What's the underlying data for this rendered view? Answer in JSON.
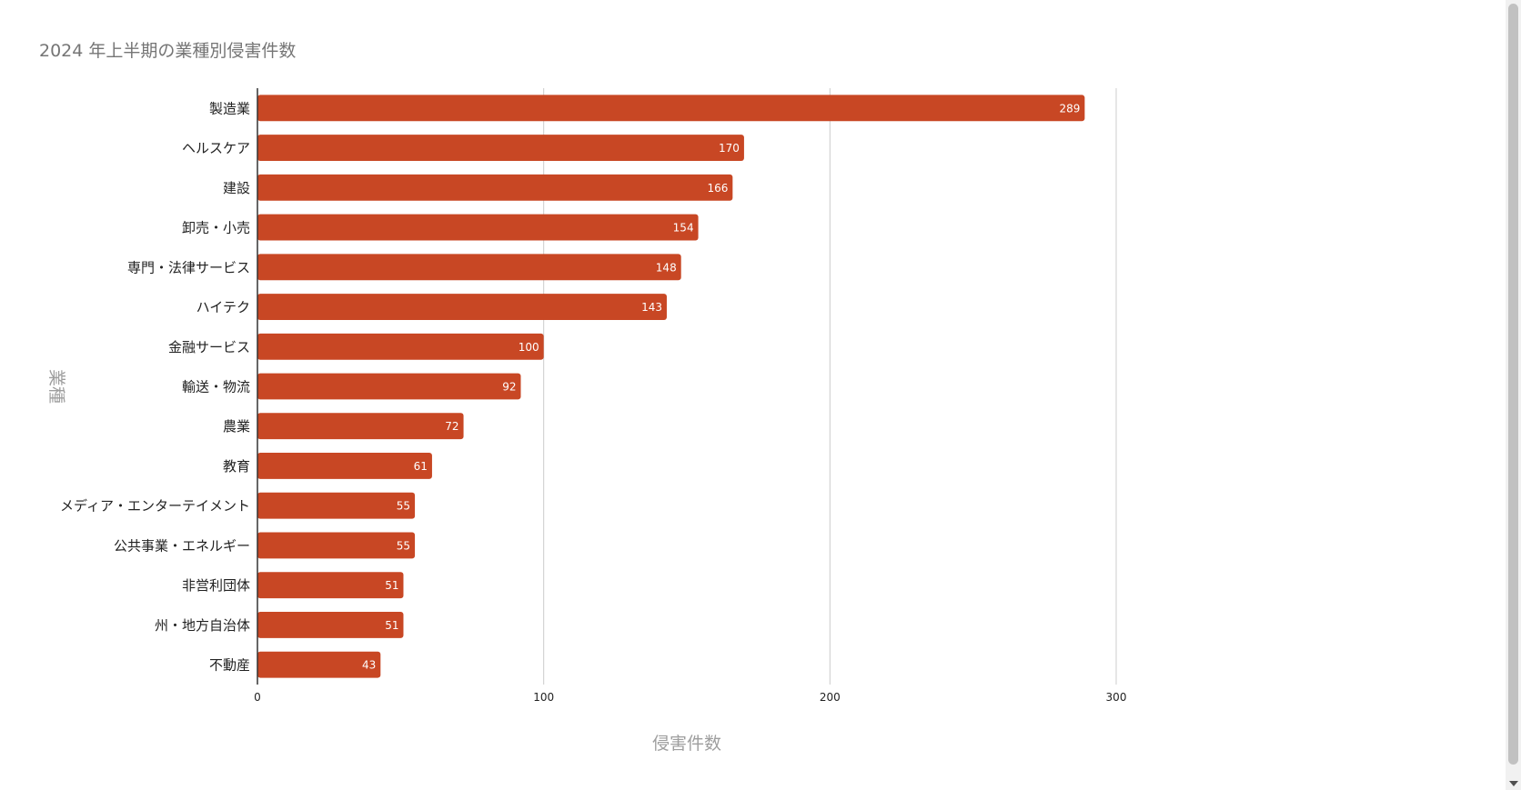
{
  "chart_data": {
    "type": "bar",
    "orientation": "horizontal",
    "title": "2024 年上半期の業種別侵害件数",
    "xlabel": "侵害件数",
    "ylabel": "業種",
    "categories": [
      "製造業",
      "ヘルスケア",
      "建設",
      "卸売・小売",
      "専門・法律サービス",
      "ハイテク",
      "金融サービス",
      "輸送・物流",
      "農業",
      "教育",
      "メディア・エンターテイメント",
      "公共事業・エネルギー",
      "非営利団体",
      "州・地方自治体",
      "不動産"
    ],
    "values": [
      289,
      170,
      166,
      154,
      148,
      143,
      100,
      92,
      72,
      61,
      55,
      55,
      51,
      51,
      43
    ],
    "xlim": [
      0,
      300
    ],
    "xticks": [
      0,
      100,
      200,
      300
    ],
    "grid": true,
    "legend": "none",
    "bar_color": "#c84724"
  }
}
